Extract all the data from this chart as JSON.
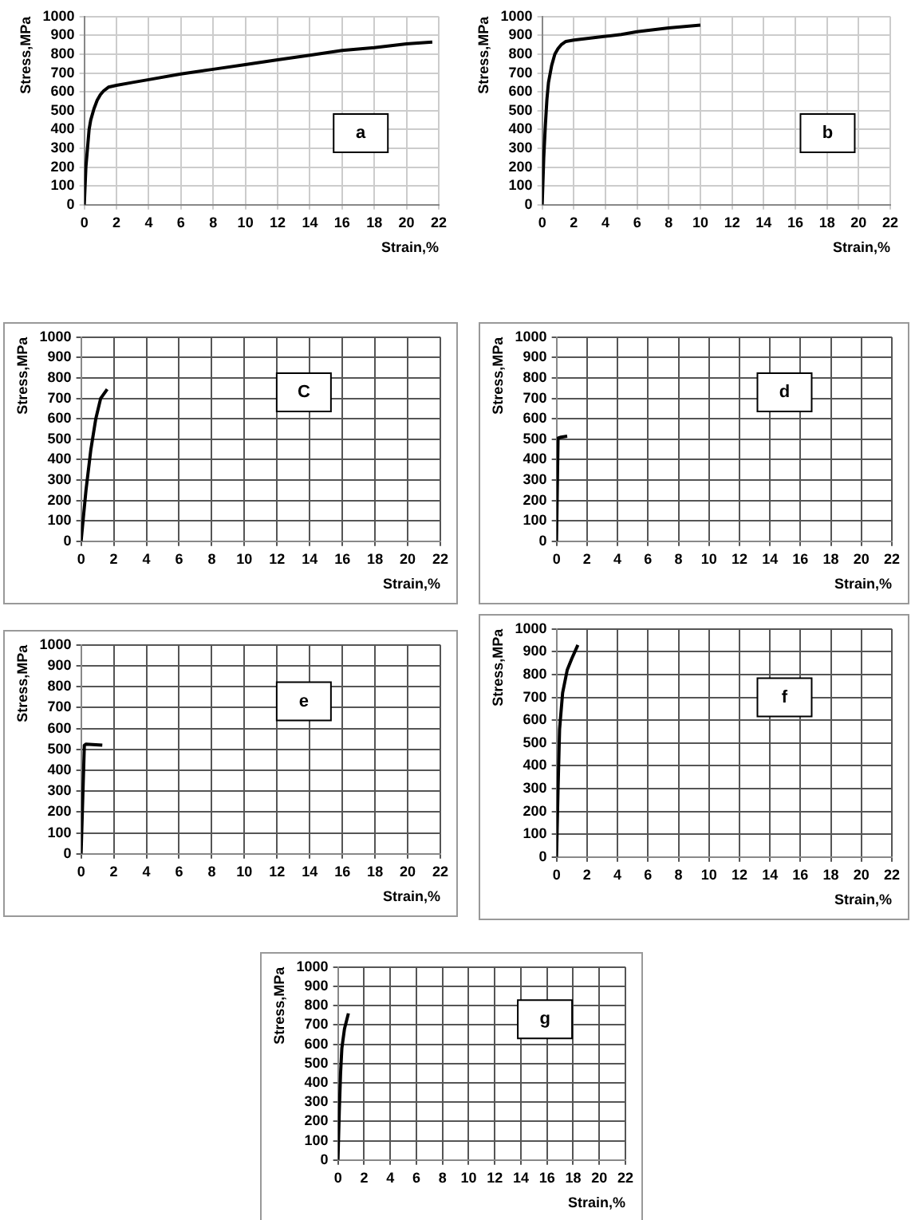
{
  "chart_data": [
    {
      "type": "line",
      "xlabel": "Strain,%",
      "ylabel": "Stress,MPa",
      "annotations": [
        "a"
      ],
      "xlim": [
        0,
        22
      ],
      "xticks": [
        0,
        2,
        4,
        6,
        8,
        10,
        12,
        14,
        16,
        18,
        20,
        22
      ],
      "ylim": [
        0,
        1000
      ],
      "yticks": [
        0,
        100,
        200,
        300,
        400,
        500,
        600,
        700,
        800,
        900,
        1000
      ],
      "grid": true,
      "legend": false,
      "marker": "none",
      "line_style": "solid",
      "series": [
        {
          "color": "#000000",
          "x": [
            0,
            0.1,
            0.2,
            0.3,
            0.4,
            0.6,
            0.8,
            1.0,
            1.2,
            1.5,
            2,
            3,
            4,
            6,
            8,
            10,
            12,
            14,
            16,
            18,
            20,
            21.6
          ],
          "values": [
            0,
            200,
            300,
            400,
            450,
            510,
            555,
            585,
            605,
            625,
            635,
            650,
            665,
            695,
            720,
            745,
            770,
            795,
            820,
            835,
            855,
            865
          ]
        }
      ]
    },
    {
      "type": "line",
      "xlabel": "Strain,%",
      "ylabel": "Stress,MPa",
      "annotations": [
        "b"
      ],
      "xlim": [
        0,
        22
      ],
      "xticks": [
        0,
        2,
        4,
        6,
        8,
        10,
        12,
        14,
        16,
        18,
        20,
        22
      ],
      "ylim": [
        0,
        1000
      ],
      "yticks": [
        0,
        100,
        200,
        300,
        400,
        500,
        600,
        700,
        800,
        900,
        1000
      ],
      "grid": true,
      "legend": false,
      "marker": "none",
      "line_style": "solid",
      "series": [
        {
          "color": "#000000",
          "x": [
            0,
            0.1,
            0.2,
            0.3,
            0.4,
            0.6,
            0.8,
            1.0,
            1.2,
            1.5,
            2,
            4,
            5,
            6,
            8,
            10
          ],
          "values": [
            0,
            250,
            420,
            560,
            650,
            740,
            800,
            830,
            850,
            868,
            875,
            895,
            905,
            920,
            940,
            955
          ]
        }
      ]
    },
    {
      "type": "line",
      "xlabel": "Strain,%",
      "ylabel": "Stress,MPa",
      "annotations": [
        "C"
      ],
      "xlim": [
        0,
        22
      ],
      "xticks": [
        0,
        2,
        4,
        6,
        8,
        10,
        12,
        14,
        16,
        18,
        20,
        22
      ],
      "ylim": [
        0,
        1000
      ],
      "yticks": [
        0,
        100,
        200,
        300,
        400,
        500,
        600,
        700,
        800,
        900,
        1000
      ],
      "grid": true,
      "legend": false,
      "marker": "none",
      "line_style": "solid",
      "series": [
        {
          "color": "#000000",
          "x": [
            0,
            0.3,
            0.6,
            0.9,
            1.2,
            1.6
          ],
          "values": [
            0,
            250,
            450,
            600,
            700,
            745
          ]
        }
      ]
    },
    {
      "type": "line",
      "xlabel": "Strain,%",
      "ylabel": "Stress,MPa",
      "annotations": [
        "d"
      ],
      "xlim": [
        0,
        22
      ],
      "xticks": [
        0,
        2,
        4,
        6,
        8,
        10,
        12,
        14,
        16,
        18,
        20,
        22
      ],
      "ylim": [
        0,
        1000
      ],
      "yticks": [
        0,
        100,
        200,
        300,
        400,
        500,
        600,
        700,
        800,
        900,
        1000
      ],
      "grid": true,
      "legend": false,
      "marker": "none",
      "line_style": "solid",
      "series": [
        {
          "color": "#000000",
          "x": [
            0,
            0.1,
            0.3,
            0.7
          ],
          "values": [
            0,
            505,
            510,
            515
          ]
        }
      ]
    },
    {
      "type": "line",
      "xlabel": "Strain,%",
      "ylabel": "Stress,MPa",
      "annotations": [
        "e"
      ],
      "xlim": [
        0,
        22
      ],
      "xticks": [
        0,
        2,
        4,
        6,
        8,
        10,
        12,
        14,
        16,
        18,
        20,
        22
      ],
      "ylim": [
        0,
        1000
      ],
      "yticks": [
        0,
        100,
        200,
        300,
        400,
        500,
        600,
        700,
        800,
        900,
        1000
      ],
      "grid": true,
      "legend": false,
      "marker": "none",
      "line_style": "solid",
      "series": [
        {
          "color": "#000000",
          "x": [
            0,
            0.2,
            0.3,
            1.3
          ],
          "values": [
            0,
            520,
            525,
            520
          ]
        }
      ]
    },
    {
      "type": "line",
      "xlabel": "Strain,%",
      "ylabel": "Stress,MPa",
      "annotations": [
        "f"
      ],
      "xlim": [
        0,
        22
      ],
      "xticks": [
        0,
        2,
        4,
        6,
        8,
        10,
        12,
        14,
        16,
        18,
        20,
        22
      ],
      "ylim": [
        0,
        1000
      ],
      "yticks": [
        0,
        100,
        200,
        300,
        400,
        500,
        600,
        700,
        800,
        900,
        1000
      ],
      "grid": true,
      "legend": false,
      "marker": "none",
      "line_style": "solid",
      "series": [
        {
          "color": "#000000",
          "x": [
            0,
            0.1,
            0.2,
            0.4,
            0.7,
            1.0,
            1.4
          ],
          "values": [
            0,
            300,
            560,
            720,
            820,
            870,
            930
          ]
        }
      ]
    },
    {
      "type": "line",
      "xlabel": "Strain,%",
      "ylabel": "Stress,MPa",
      "annotations": [
        "g"
      ],
      "xlim": [
        0,
        22
      ],
      "xticks": [
        0,
        2,
        4,
        6,
        8,
        10,
        12,
        14,
        16,
        18,
        20,
        22
      ],
      "ylim": [
        0,
        1000
      ],
      "yticks": [
        0,
        100,
        200,
        300,
        400,
        500,
        600,
        700,
        800,
        900,
        1000
      ],
      "grid": true,
      "legend": false,
      "marker": "none",
      "line_style": "solid",
      "series": [
        {
          "color": "#000000",
          "x": [
            0,
            0.1,
            0.2,
            0.3,
            0.5,
            0.8
          ],
          "values": [
            0,
            250,
            450,
            580,
            680,
            760
          ]
        }
      ]
    }
  ]
}
